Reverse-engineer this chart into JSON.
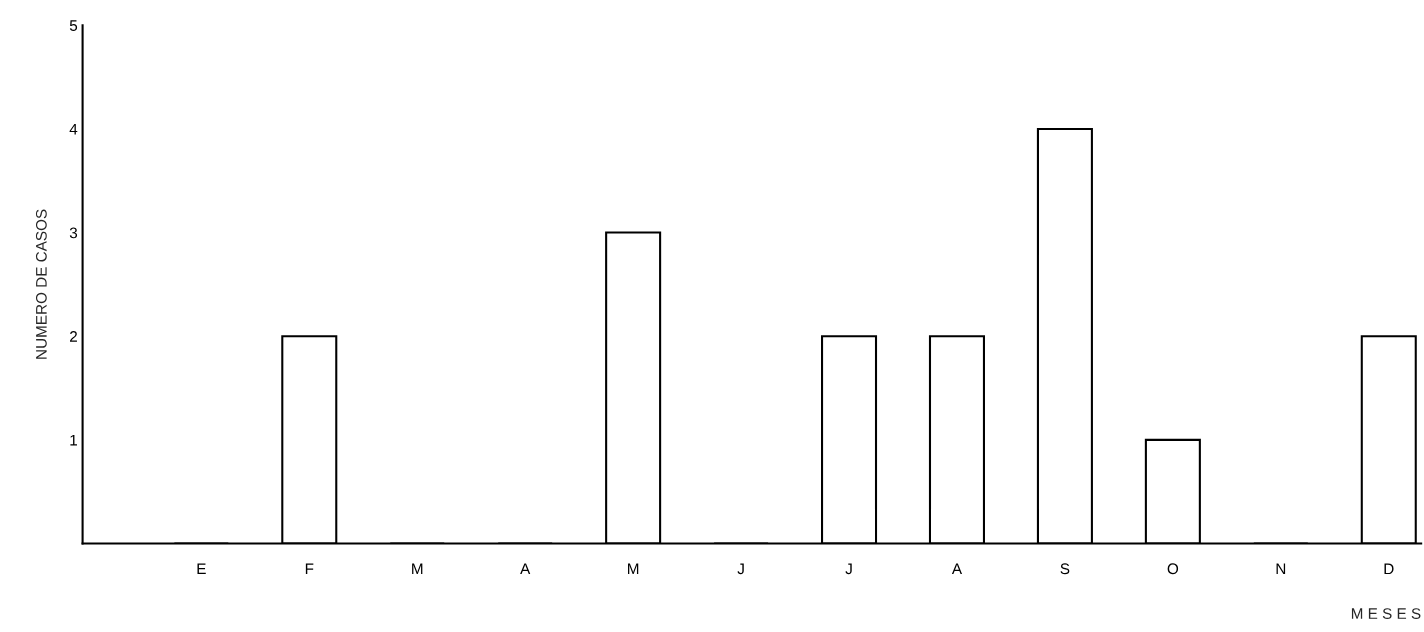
{
  "chart_data": {
    "type": "bar",
    "xlabel": "M E S E S",
    "ylabel": "NUMERO DE CASOS",
    "categories": [
      "E",
      "F",
      "M",
      "A",
      "M",
      "J",
      "J",
      "A",
      "S",
      "O",
      "N",
      "D"
    ],
    "values": [
      0,
      2,
      0,
      0,
      3,
      0,
      2,
      2,
      4,
      1,
      0,
      2
    ],
    "color": "#ffffff",
    "ylim": [
      0,
      5
    ],
    "yticks": [
      1,
      2,
      3,
      4,
      5
    ],
    "grid": false,
    "legend": false
  }
}
